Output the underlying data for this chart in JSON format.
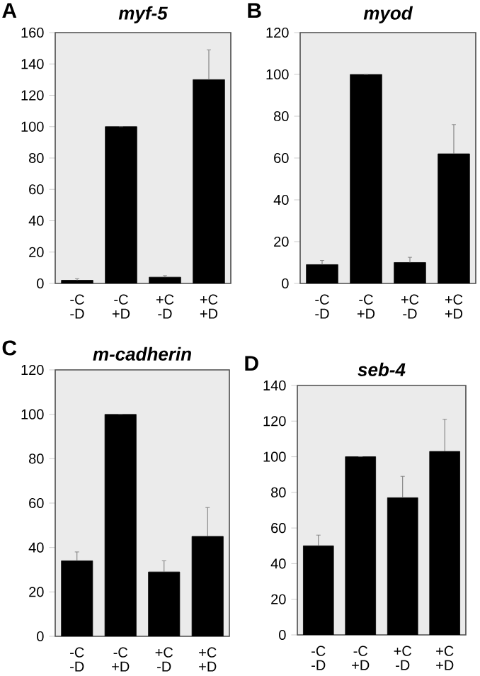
{
  "chart_data": [
    {
      "type": "bar",
      "title": "myf-5",
      "annotations": [
        "A"
      ],
      "categories": [
        "-C -D",
        "-C +D",
        "+C -D",
        "+C +D"
      ],
      "values": [
        2,
        100,
        4,
        130
      ],
      "errors": [
        1,
        null,
        1,
        19
      ],
      "color": "#000000",
      "ylim": [
        0,
        160
      ],
      "yticks": [
        0,
        20,
        40,
        60,
        80,
        100,
        120,
        140,
        160
      ]
    },
    {
      "type": "bar",
      "title": "myod",
      "annotations": [
        "B"
      ],
      "categories": [
        "-C -D",
        "-C +D",
        "+C -D",
        "+C +D"
      ],
      "values": [
        9,
        100,
        10,
        62
      ],
      "errors": [
        2,
        null,
        2.5,
        14
      ],
      "color": "#000000",
      "ylim": [
        0,
        120
      ],
      "yticks": [
        0,
        20,
        40,
        60,
        80,
        100,
        120
      ]
    },
    {
      "type": "bar",
      "title": "m-cadherin",
      "annotations": [
        "C"
      ],
      "categories": [
        "-C -D",
        "-C +D",
        "+C -D",
        "+C +D"
      ],
      "values": [
        34,
        100,
        29,
        45
      ],
      "errors": [
        4,
        null,
        5,
        13
      ],
      "color": "#000000",
      "ylim": [
        0,
        120
      ],
      "yticks": [
        0,
        20,
        40,
        60,
        80,
        100,
        120
      ]
    },
    {
      "type": "bar",
      "title": "seb-4",
      "annotations": [
        "D"
      ],
      "categories": [
        "-C -D",
        "-C +D",
        "+C -D",
        "+C +D"
      ],
      "values": [
        50,
        100,
        77,
        103
      ],
      "errors": [
        6,
        null,
        12,
        18
      ],
      "color": "#000000",
      "ylim": [
        0,
        140
      ],
      "yticks": [
        0,
        20,
        40,
        60,
        80,
        100,
        120,
        140
      ]
    }
  ]
}
